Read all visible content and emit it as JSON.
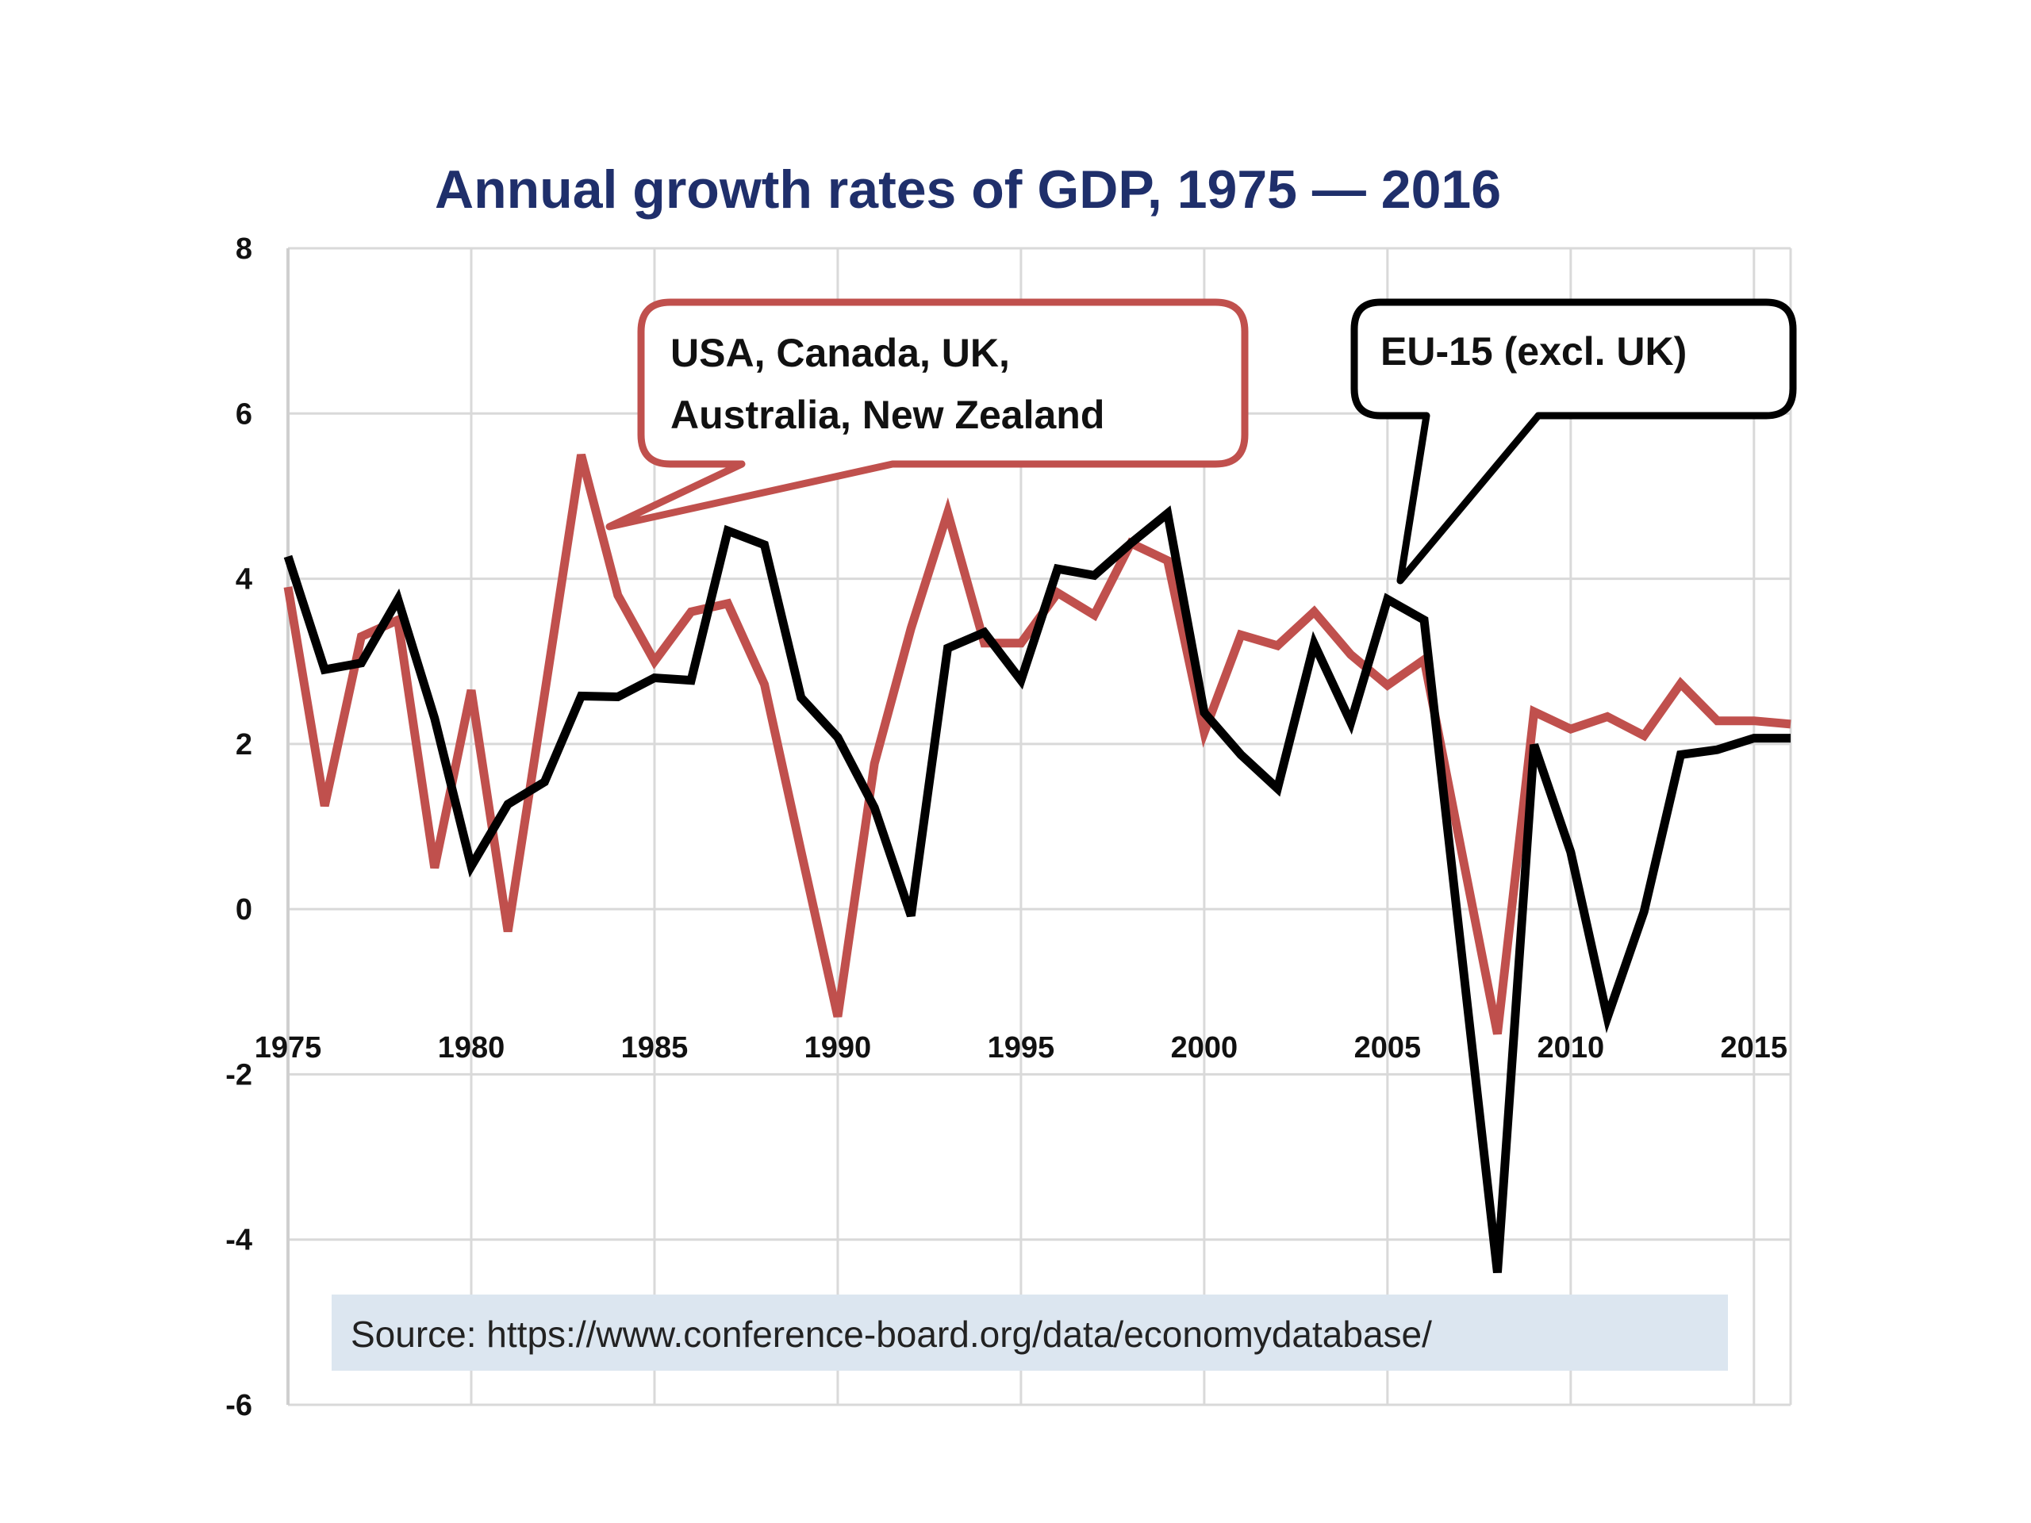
{
  "chart_data": {
    "type": "line",
    "title": "Annual growth rates of GDP, 1975 — 2016",
    "xlabel": "",
    "ylabel": "",
    "ylim": [
      -6,
      8
    ],
    "xlim": [
      1975,
      2016
    ],
    "yticks": [
      8,
      6,
      4,
      2,
      0,
      -2,
      -4,
      -6
    ],
    "xticks": [
      1975,
      1980,
      1985,
      1990,
      1995,
      2000,
      2005,
      2010,
      2015
    ],
    "grid": true,
    "legend": "callouts",
    "x": [
      1975,
      1976,
      1977,
      1978,
      1979,
      1980,
      1981,
      1982,
      1983,
      1984,
      1985,
      1986,
      1987,
      1988,
      1989,
      1990,
      1991,
      1992,
      1993,
      1994,
      1995,
      1996,
      1997,
      1998,
      1999,
      2000,
      2001,
      2002,
      2003,
      2004,
      2005,
      2006,
      2007,
      2008,
      2009,
      2010,
      2011,
      2012,
      2013,
      2014,
      2015,
      2016
    ],
    "series": [
      {
        "name": "USA, Canada, UK, Australia, New Zealand",
        "color": "#c0504d",
        "values": [
          3.9,
          1.25,
          3.3,
          3.5,
          0.5,
          2.65,
          -0.27,
          2.6,
          5.5,
          3.8,
          3.0,
          3.6,
          3.7,
          2.72,
          0.7,
          -1.3,
          1.76,
          3.4,
          4.8,
          3.22,
          3.22,
          3.83,
          3.56,
          4.43,
          4.22,
          2.14,
          3.32,
          3.19,
          3.6,
          3.08,
          2.71,
          3.02,
          0.75,
          -1.51,
          2.39,
          2.18,
          2.33,
          2.1,
          2.73,
          2.28,
          2.28,
          2.24
        ]
      },
      {
        "name": "EU-15 (excl. UK)",
        "color": "#000000",
        "values": [
          4.27,
          2.9,
          2.98,
          3.75,
          2.31,
          0.52,
          1.27,
          1.54,
          2.58,
          2.57,
          2.8,
          2.77,
          4.58,
          4.41,
          2.56,
          2.08,
          1.23,
          -0.08,
          3.16,
          3.35,
          2.77,
          4.12,
          4.04,
          4.43,
          4.79,
          2.38,
          1.87,
          1.46,
          3.21,
          2.26,
          3.75,
          3.5,
          -0.45,
          -4.4,
          1.99,
          0.69,
          -1.31,
          -0.03,
          1.87,
          1.93,
          2.07,
          2.07
        ]
      }
    ],
    "annotations": [
      {
        "text_lines": [
          "USA, Canada, UK,",
          "Australia, New Zealand"
        ],
        "color": "#c0504d",
        "points_to": "1983"
      },
      {
        "text_lines": [
          "EU-15 (excl. UK)"
        ],
        "color": "#000000",
        "points_to": "2005"
      }
    ],
    "source": "Source: https://www.conference-board.org/data/economydatabase/"
  },
  "colors": {
    "title": "#1f2f6b",
    "source_background": "#dce6f0"
  }
}
